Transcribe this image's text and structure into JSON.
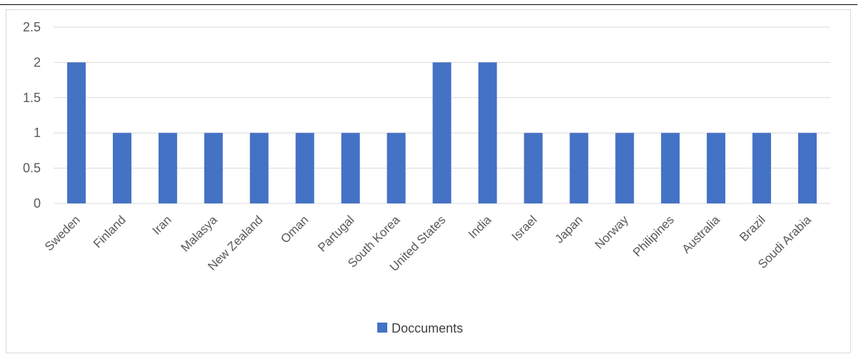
{
  "chart_data": {
    "type": "bar",
    "categories": [
      "Sweden",
      "Finland",
      "Iran",
      "Malasya",
      "New Zealand",
      "Oman",
      "Partugal",
      "South Korea",
      "United States",
      "India",
      "Israel",
      "Japan",
      "Norway",
      "Philipines",
      "Australia",
      "Brazil",
      "Soudi Arabia"
    ],
    "series": [
      {
        "name": "Doccuments",
        "color": "#4472c4",
        "values": [
          2,
          1,
          1,
          1,
          1,
          1,
          1,
          1,
          2,
          2,
          1,
          1,
          1,
          1,
          1,
          1,
          1
        ]
      }
    ],
    "ylim": [
      0,
      2.5
    ],
    "yticks": [
      0,
      0.5,
      1,
      1.5,
      2,
      2.5
    ],
    "ytick_labels": [
      "0",
      "0.5",
      "1",
      "1.5",
      "2",
      "2.5"
    ],
    "grid": true,
    "gridline_color": "#d9d9d9",
    "legend_position": "bottom",
    "xlabel": "",
    "ylabel": "",
    "title": ""
  }
}
